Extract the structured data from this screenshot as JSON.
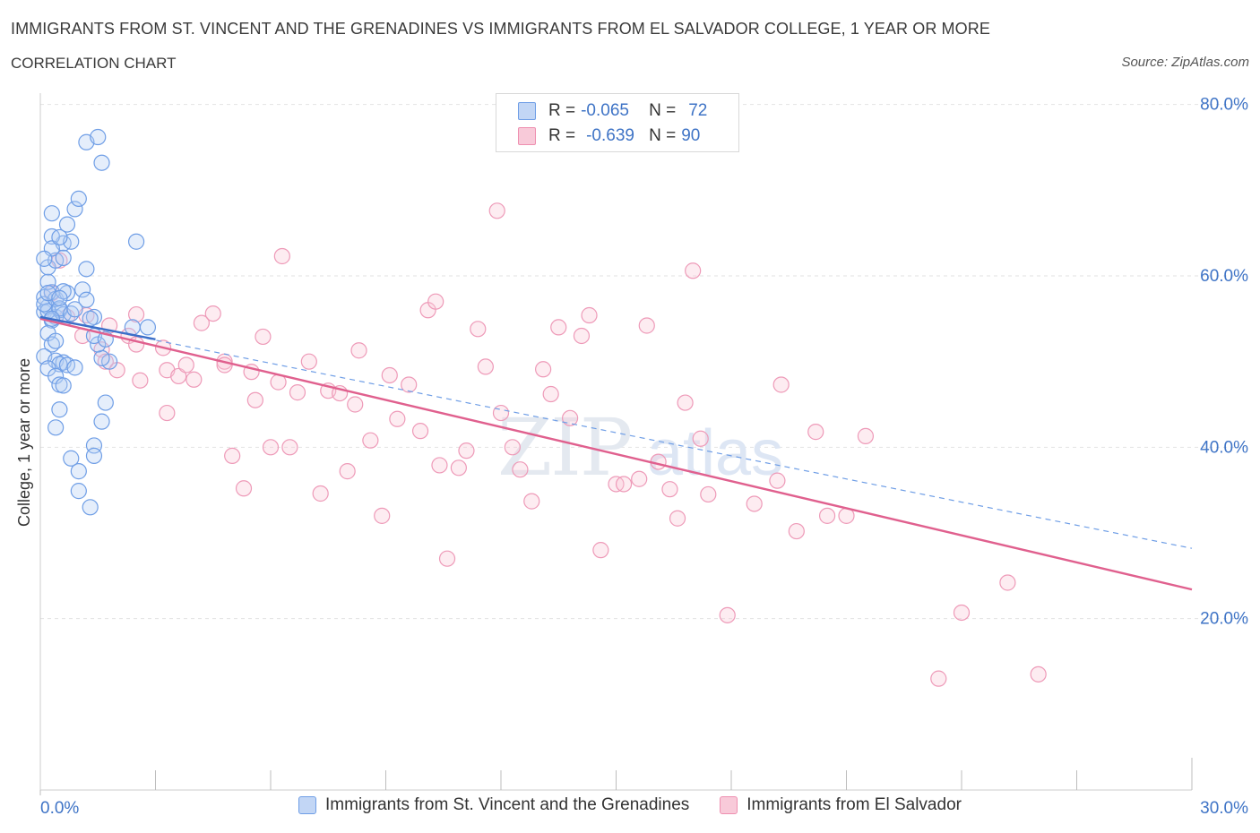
{
  "header": {
    "title": "IMMIGRANTS FROM ST. VINCENT AND THE GRENADINES VS IMMIGRANTS FROM EL SALVADOR COLLEGE, 1 YEAR OR MORE",
    "subtitle": "CORRELATION CHART",
    "source": "Source: ZipAtlas.com"
  },
  "stats": {
    "r_label": "R =",
    "n_label": "N =",
    "series1": {
      "r": "-0.065",
      "n": "72"
    },
    "series2": {
      "r": "-0.639",
      "n": "90"
    }
  },
  "colors": {
    "blue": "#6f9ee6",
    "blue_line": "#3c6fc8",
    "pink": "#ee8fb0",
    "pink_line": "#e0608e",
    "tick_text": "#3f74c6"
  },
  "chart_data": {
    "type": "scatter",
    "title": "IMMIGRANTS FROM ST. VINCENT AND THE GRENADINES VS IMMIGRANTS FROM EL SALVADOR COLLEGE, 1 YEAR OR MORE",
    "xlabel": "",
    "ylabel": "College, 1 year or more",
    "xlim": [
      0,
      30
    ],
    "ylim": [
      0,
      80
    ],
    "x_tick_labels": [
      "0.0%",
      "30.0%"
    ],
    "y_tick_labels": [
      "20.0%",
      "40.0%",
      "60.0%",
      "80.0%"
    ],
    "grid": true,
    "legend_position": "bottom-center",
    "watermark": "ZIPatlas",
    "series": [
      {
        "name": "Immigrants from St. Vincent and the Grenadines",
        "trend": {
          "x": [
            0,
            3
          ],
          "y": [
            55.2,
            52.6
          ]
        },
        "trend_dashed": {
          "x": [
            0,
            30
          ],
          "y": [
            55.2,
            28.2
          ]
        },
        "points": [
          [
            0.1,
            55.8
          ],
          [
            0.2,
            56.4
          ],
          [
            0.1,
            57.5
          ],
          [
            0.3,
            58.1
          ],
          [
            0.2,
            59.3
          ],
          [
            0.4,
            55.2
          ],
          [
            0.5,
            56.0
          ],
          [
            0.3,
            54.8
          ],
          [
            0.6,
            55.5
          ],
          [
            0.2,
            55.9
          ],
          [
            0.1,
            56.7
          ],
          [
            0.4,
            57.3
          ],
          [
            0.7,
            58.0
          ],
          [
            0.5,
            56.2
          ],
          [
            0.3,
            55.0
          ],
          [
            0.8,
            55.6
          ],
          [
            0.6,
            58.2
          ],
          [
            1.1,
            58.4
          ],
          [
            1.2,
            57.2
          ],
          [
            1.4,
            55.2
          ],
          [
            0.2,
            61.0
          ],
          [
            0.4,
            61.8
          ],
          [
            0.6,
            63.8
          ],
          [
            0.3,
            64.6
          ],
          [
            0.8,
            64.0
          ],
          [
            0.6,
            62.1
          ],
          [
            1.2,
            60.8
          ],
          [
            0.3,
            63.2
          ],
          [
            0.5,
            64.5
          ],
          [
            0.7,
            66.0
          ],
          [
            0.3,
            67.3
          ],
          [
            0.9,
            67.8
          ],
          [
            1.0,
            69.0
          ],
          [
            1.2,
            75.6
          ],
          [
            1.5,
            76.2
          ],
          [
            1.6,
            73.2
          ],
          [
            2.5,
            64.0
          ],
          [
            0.2,
            53.3
          ],
          [
            0.3,
            52.0
          ],
          [
            0.1,
            50.6
          ],
          [
            0.4,
            52.4
          ],
          [
            0.4,
            50.1
          ],
          [
            0.6,
            49.9
          ],
          [
            0.5,
            49.7
          ],
          [
            0.7,
            49.6
          ],
          [
            0.9,
            49.3
          ],
          [
            0.2,
            49.2
          ],
          [
            0.4,
            48.3
          ],
          [
            0.5,
            47.3
          ],
          [
            0.6,
            47.2
          ],
          [
            0.5,
            44.4
          ],
          [
            0.4,
            42.3
          ],
          [
            1.7,
            45.2
          ],
          [
            1.6,
            43.0
          ],
          [
            1.4,
            40.2
          ],
          [
            1.4,
            39.0
          ],
          [
            0.8,
            38.7
          ],
          [
            1.0,
            37.2
          ],
          [
            1.0,
            34.9
          ],
          [
            1.3,
            33.0
          ],
          [
            1.8,
            50.0
          ],
          [
            1.6,
            50.4
          ],
          [
            1.5,
            52.0
          ],
          [
            1.4,
            53.0
          ],
          [
            1.7,
            52.6
          ],
          [
            2.4,
            54.0
          ],
          [
            2.8,
            54.0
          ],
          [
            0.1,
            62.0
          ],
          [
            0.2,
            58.0
          ],
          [
            0.5,
            57.4
          ],
          [
            0.9,
            56.1
          ],
          [
            1.3,
            55.0
          ]
        ]
      },
      {
        "name": "Immigrants from El Salvador",
        "trend": {
          "x": [
            0,
            30
          ],
          "y": [
            55.0,
            23.4
          ]
        },
        "points": [
          [
            0.3,
            58.0
          ],
          [
            0.5,
            61.8
          ],
          [
            0.7,
            55.2
          ],
          [
            1.2,
            55.4
          ],
          [
            1.1,
            53.0
          ],
          [
            1.6,
            51.4
          ],
          [
            1.7,
            50.0
          ],
          [
            2.0,
            49.0
          ],
          [
            2.3,
            53.0
          ],
          [
            2.5,
            52.0
          ],
          [
            2.6,
            47.8
          ],
          [
            2.5,
            55.5
          ],
          [
            3.2,
            51.6
          ],
          [
            3.3,
            49.0
          ],
          [
            3.3,
            44.0
          ],
          [
            3.6,
            48.3
          ],
          [
            3.8,
            49.6
          ],
          [
            4.0,
            47.9
          ],
          [
            4.2,
            54.5
          ],
          [
            4.5,
            55.6
          ],
          [
            4.8,
            50.0
          ],
          [
            5.0,
            39.0
          ],
          [
            5.3,
            35.2
          ],
          [
            5.5,
            48.8
          ],
          [
            5.6,
            45.5
          ],
          [
            5.8,
            52.9
          ],
          [
            6.0,
            40.0
          ],
          [
            6.2,
            47.6
          ],
          [
            6.3,
            62.3
          ],
          [
            6.5,
            40.0
          ],
          [
            6.7,
            46.4
          ],
          [
            7.0,
            50.0
          ],
          [
            7.3,
            34.6
          ],
          [
            7.5,
            46.6
          ],
          [
            7.8,
            46.3
          ],
          [
            8.0,
            37.2
          ],
          [
            8.2,
            45.0
          ],
          [
            8.3,
            51.3
          ],
          [
            8.6,
            40.8
          ],
          [
            8.9,
            32.0
          ],
          [
            9.1,
            48.4
          ],
          [
            9.3,
            43.3
          ],
          [
            9.6,
            47.3
          ],
          [
            9.9,
            41.9
          ],
          [
            10.1,
            56.0
          ],
          [
            10.3,
            57.0
          ],
          [
            10.4,
            37.9
          ],
          [
            10.6,
            27.0
          ],
          [
            10.9,
            37.6
          ],
          [
            11.1,
            39.6
          ],
          [
            11.4,
            53.8
          ],
          [
            11.6,
            49.4
          ],
          [
            11.9,
            67.6
          ],
          [
            12.0,
            44.0
          ],
          [
            12.3,
            40.0
          ],
          [
            12.5,
            37.4
          ],
          [
            12.8,
            33.7
          ],
          [
            13.1,
            49.1
          ],
          [
            13.3,
            46.2
          ],
          [
            13.5,
            54.0
          ],
          [
            13.8,
            43.4
          ],
          [
            14.1,
            53.0
          ],
          [
            14.3,
            55.4
          ],
          [
            14.6,
            28.0
          ],
          [
            15.0,
            35.7
          ],
          [
            15.2,
            35.7
          ],
          [
            15.6,
            36.3
          ],
          [
            15.8,
            54.2
          ],
          [
            16.1,
            38.3
          ],
          [
            16.4,
            35.1
          ],
          [
            16.6,
            31.7
          ],
          [
            16.8,
            45.2
          ],
          [
            17.0,
            60.6
          ],
          [
            17.2,
            41.0
          ],
          [
            17.4,
            34.5
          ],
          [
            17.9,
            20.4
          ],
          [
            18.6,
            33.4
          ],
          [
            19.3,
            47.3
          ],
          [
            19.2,
            36.1
          ],
          [
            19.7,
            30.2
          ],
          [
            20.2,
            41.8
          ],
          [
            20.5,
            32.0
          ],
          [
            21.0,
            32.0
          ],
          [
            21.5,
            41.3
          ],
          [
            23.4,
            13.0
          ],
          [
            24.0,
            20.7
          ],
          [
            25.2,
            24.2
          ],
          [
            26.0,
            13.5
          ],
          [
            4.8,
            49.6
          ],
          [
            1.8,
            54.2
          ]
        ]
      }
    ]
  },
  "legend": {
    "item1": "Immigrants from St. Vincent and the Grenadines",
    "item2": "Immigrants from El Salvador"
  }
}
